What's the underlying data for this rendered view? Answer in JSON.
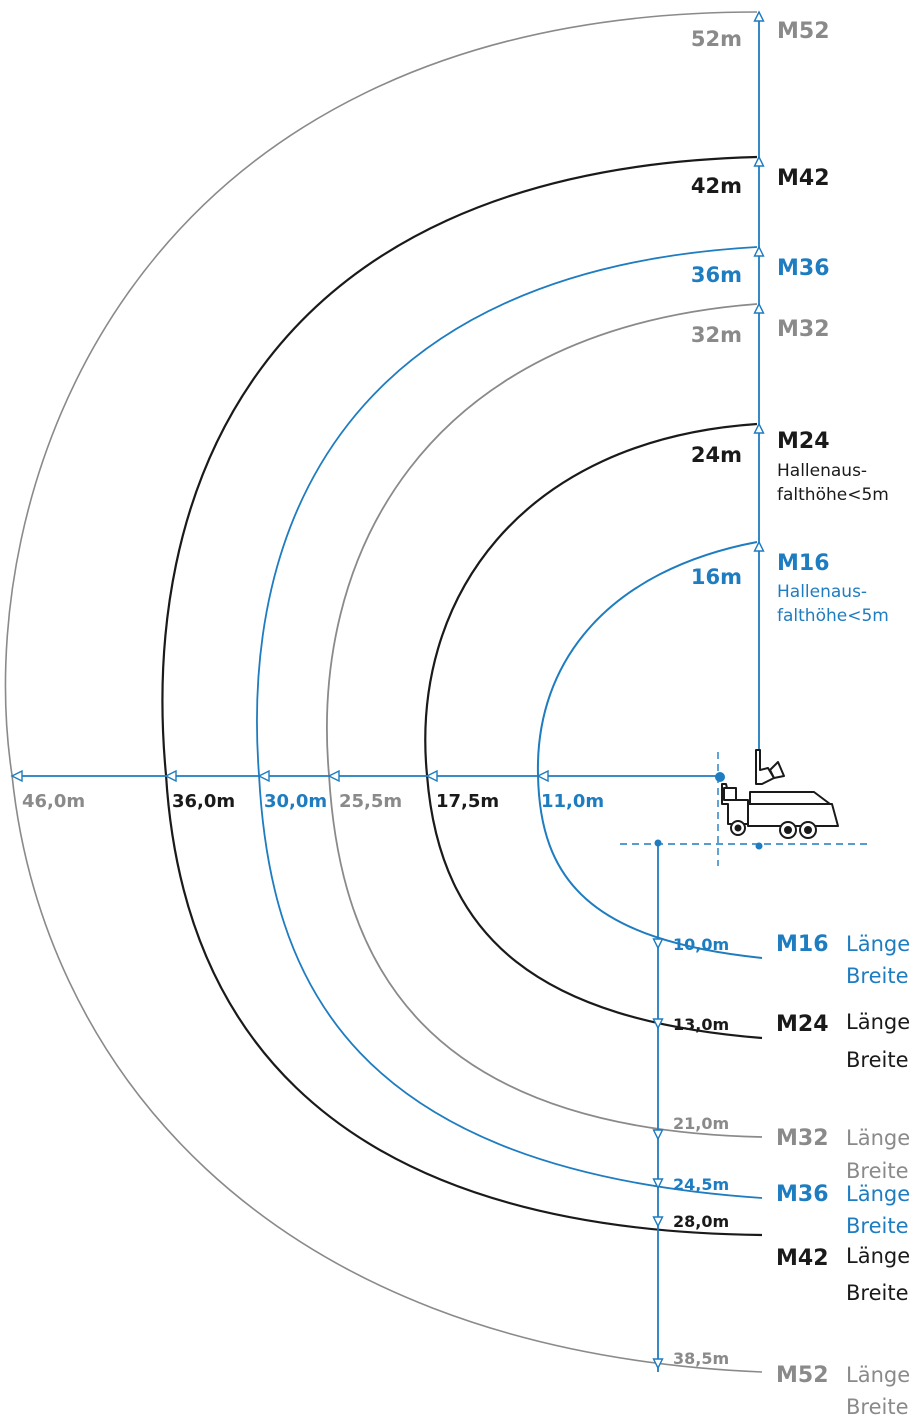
{
  "colors": {
    "blue": "#1e7cc0",
    "black": "#1a1a1a",
    "gray": "#8a8a8a",
    "axis": "#1e7cc0"
  },
  "models": [
    {
      "id": "m16",
      "name": "M16",
      "height": "16m",
      "reach": "11,0m",
      "depth": "10,0m",
      "color": "blue",
      "note": "Hallenaus-|falthöhe<5m",
      "length_label": "Länge",
      "width_label": "Breite"
    },
    {
      "id": "m24",
      "name": "M24",
      "height": "24m",
      "reach": "17,5m",
      "depth": "13,0m",
      "color": "black",
      "note": "Hallenaus-|falthöhe<5m",
      "length_label": "Länge",
      "width_label": "Breite"
    },
    {
      "id": "m32",
      "name": "M32",
      "height": "32m",
      "reach": "25,5m",
      "depth": "21,0m",
      "color": "gray",
      "note": "",
      "length_label": "Länge",
      "width_label": "Breite"
    },
    {
      "id": "m36",
      "name": "M36",
      "height": "36m",
      "reach": "30,0m",
      "depth": "24,5m",
      "color": "blue",
      "note": "",
      "length_label": "Länge",
      "width_label": "Breite"
    },
    {
      "id": "m42",
      "name": "M42",
      "height": "42m",
      "reach": "36,0m",
      "depth": "28,0m",
      "color": "black",
      "note": "",
      "length_label": "Länge",
      "width_label": "Breite"
    },
    {
      "id": "m52",
      "name": "M52",
      "height": "52m",
      "reach": "46,0m",
      "depth": "38,5m",
      "color": "gray",
      "note": "",
      "length_label": "Länge",
      "width_label": "Breite"
    }
  ],
  "truck_icon": "concrete-pump-truck-icon"
}
